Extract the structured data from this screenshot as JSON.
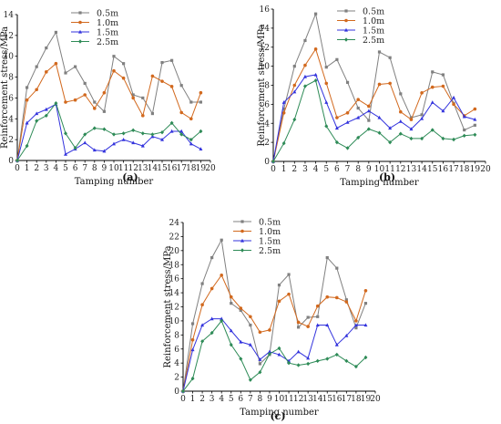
{
  "chart_data": [
    {
      "type": "line",
      "panel_label": "(a)",
      "xlabel": "Tamping number",
      "ylabel": "Reinforcement stress/MPa",
      "xlim": [
        0,
        20
      ],
      "ylim": [
        0,
        14
      ],
      "xticks": [
        0,
        1,
        2,
        3,
        4,
        5,
        6,
        7,
        8,
        9,
        10,
        11,
        12,
        13,
        14,
        15,
        16,
        17,
        18,
        19,
        20
      ],
      "yticks": [
        0,
        2,
        4,
        6,
        8,
        10,
        12,
        14
      ],
      "legend": "top-left",
      "series": [
        {
          "name": "0.5m",
          "color": "#808080",
          "marker": "square",
          "x": [
            0,
            1,
            2,
            3,
            4,
            5,
            6,
            7,
            8,
            9,
            10,
            11,
            12,
            13,
            14,
            15,
            16,
            17,
            18,
            19
          ],
          "y": [
            0,
            7,
            9,
            10.8,
            12.3,
            8.4,
            9.0,
            7.4,
            5.6,
            4.7,
            10.0,
            9.3,
            6.3,
            6.0,
            4.5,
            9.4,
            9.6,
            7.2,
            5.6,
            5.6
          ]
        },
        {
          "name": "1.0m",
          "color": "#d2691e",
          "marker": "circle",
          "x": [
            0,
            1,
            2,
            3,
            4,
            5,
            6,
            7,
            8,
            9,
            10,
            11,
            12,
            13,
            14,
            15,
            16,
            17,
            18,
            19
          ],
          "y": [
            0,
            5.8,
            6.8,
            8.5,
            9.3,
            5.6,
            5.8,
            6.3,
            5.0,
            6.5,
            8.6,
            7.9,
            6.0,
            4.3,
            8.1,
            7.6,
            7.1,
            4.6,
            4.0,
            6.5
          ]
        },
        {
          "name": "1.5m",
          "color": "#3333dd",
          "marker": "triangle",
          "x": [
            0,
            1,
            2,
            3,
            4,
            5,
            6,
            7,
            8,
            9,
            10,
            11,
            12,
            13,
            14,
            15,
            16,
            17,
            18,
            19
          ],
          "y": [
            0,
            3.6,
            4.5,
            4.9,
            5.4,
            0.6,
            1.1,
            1.7,
            1.0,
            0.9,
            1.6,
            2.0,
            1.7,
            1.4,
            2.3,
            2.0,
            2.8,
            2.8,
            1.6,
            1.1
          ]
        },
        {
          "name": "2.5m",
          "color": "#2e8b57",
          "marker": "diamond",
          "x": [
            0,
            1,
            2,
            3,
            4,
            5,
            6,
            7,
            8,
            9,
            10,
            11,
            12,
            13,
            14,
            15,
            16,
            17,
            18,
            19
          ],
          "y": [
            0,
            1.4,
            3.8,
            4.3,
            5.5,
            2.6,
            1.2,
            2.5,
            3.1,
            3.0,
            2.5,
            2.6,
            2.9,
            2.6,
            2.5,
            2.7,
            3.6,
            2.5,
            2.0,
            2.8
          ]
        }
      ]
    },
    {
      "type": "line",
      "panel_label": "(b)",
      "xlabel": "Tamping number",
      "ylabel": "Reinforcement stress/MPa",
      "xlim": [
        0,
        20
      ],
      "ylim": [
        0,
        16
      ],
      "xticks": [
        0,
        1,
        2,
        3,
        4,
        5,
        6,
        7,
        8,
        9,
        10,
        11,
        12,
        13,
        14,
        15,
        16,
        17,
        18,
        19,
        20
      ],
      "yticks": [
        0,
        2,
        4,
        6,
        8,
        10,
        12,
        14,
        16
      ],
      "legend": "top-center",
      "series": [
        {
          "name": "0.5m",
          "color": "#808080",
          "marker": "square",
          "x": [
            0,
            1,
            2,
            3,
            4,
            5,
            6,
            7,
            8,
            9,
            10,
            11,
            12,
            13,
            14,
            15,
            16,
            17,
            18,
            19
          ],
          "y": [
            0,
            5.5,
            10.0,
            12.7,
            15.5,
            9.9,
            10.7,
            8.3,
            5.6,
            4.3,
            11.5,
            10.9,
            7.1,
            4.6,
            4.9,
            9.4,
            9.1,
            6.1,
            3.3,
            3.8
          ]
        },
        {
          "name": "1.0m",
          "color": "#d2691e",
          "marker": "circle",
          "x": [
            0,
            1,
            2,
            3,
            4,
            5,
            6,
            7,
            8,
            9,
            10,
            11,
            12,
            13,
            14,
            15,
            16,
            17,
            18,
            19
          ],
          "y": [
            0,
            5.1,
            8.0,
            10.1,
            11.8,
            8.2,
            4.6,
            5.1,
            6.5,
            5.8,
            8.1,
            8.2,
            5.2,
            4.4,
            7.2,
            7.8,
            7.9,
            6.0,
            4.8,
            5.5
          ]
        },
        {
          "name": "1.5m",
          "color": "#3333dd",
          "marker": "triangle",
          "x": [
            0,
            1,
            2,
            3,
            4,
            5,
            6,
            7,
            8,
            9,
            10,
            11,
            12,
            13,
            14,
            15,
            16,
            17,
            18,
            19
          ],
          "y": [
            0,
            6.2,
            7.3,
            8.9,
            9.1,
            6.2,
            3.5,
            4.1,
            4.6,
            5.3,
            4.6,
            3.5,
            4.2,
            3.4,
            4.5,
            6.2,
            5.3,
            6.7,
            4.7,
            4.4
          ]
        },
        {
          "name": "2.5m",
          "color": "#2e8b57",
          "marker": "diamond",
          "x": [
            0,
            1,
            2,
            3,
            4,
            5,
            6,
            7,
            8,
            9,
            10,
            11,
            12,
            13,
            14,
            15,
            16,
            17,
            18,
            19
          ],
          "y": [
            0,
            1.9,
            4.4,
            7.9,
            8.5,
            3.7,
            2.0,
            1.4,
            2.5,
            3.4,
            3.0,
            2.0,
            2.9,
            2.4,
            2.4,
            3.3,
            2.4,
            2.3,
            2.7,
            2.8
          ]
        }
      ]
    },
    {
      "type": "line",
      "panel_label": "(c)",
      "xlabel": "Tamping number",
      "ylabel": "Reinforcement stress/MPa",
      "xlim": [
        0,
        20
      ],
      "ylim": [
        0,
        24
      ],
      "xticks": [
        0,
        1,
        2,
        3,
        4,
        5,
        6,
        7,
        8,
        9,
        10,
        11,
        12,
        13,
        14,
        15,
        16,
        17,
        18,
        19,
        20
      ],
      "yticks": [
        0,
        2,
        4,
        6,
        8,
        10,
        12,
        14,
        16,
        18,
        20,
        22,
        24
      ],
      "legend": "top-left",
      "series": [
        {
          "name": "0.5m",
          "color": "#808080",
          "marker": "square",
          "x": [
            0,
            1,
            2,
            3,
            4,
            5,
            6,
            7,
            8,
            9,
            10,
            11,
            12,
            13,
            14,
            15,
            16,
            17,
            18,
            19
          ],
          "y": [
            0,
            9.6,
            15.3,
            19.0,
            21.5,
            12.5,
            11.5,
            9.4,
            3.9,
            5.2,
            15.1,
            16.6,
            9.1,
            10.5,
            10.6,
            19.0,
            17.5,
            13.0,
            9.0,
            12.5
          ]
        },
        {
          "name": "1.0m",
          "color": "#d2691e",
          "marker": "circle",
          "x": [
            0,
            1,
            2,
            3,
            4,
            5,
            6,
            7,
            8,
            9,
            10,
            11,
            12,
            13,
            14,
            15,
            16,
            17,
            18,
            19
          ],
          "y": [
            0,
            7.3,
            12.3,
            14.6,
            16.5,
            13.4,
            11.8,
            10.6,
            8.4,
            8.7,
            12.8,
            13.8,
            9.8,
            9.2,
            12.1,
            13.4,
            13.3,
            12.7,
            10.0,
            14.3
          ]
        },
        {
          "name": "1.5m",
          "color": "#3333dd",
          "marker": "triangle",
          "x": [
            0,
            1,
            2,
            3,
            4,
            5,
            6,
            7,
            8,
            9,
            10,
            11,
            12,
            13,
            14,
            15,
            16,
            17,
            18,
            19
          ],
          "y": [
            0,
            5.9,
            9.4,
            10.3,
            10.3,
            8.6,
            7.0,
            6.6,
            4.5,
            5.6,
            5.2,
            4.3,
            5.6,
            4.7,
            9.4,
            9.4,
            6.6,
            7.9,
            9.4,
            9.4
          ]
        },
        {
          "name": "2.5m",
          "color": "#2e8b57",
          "marker": "diamond",
          "x": [
            0,
            1,
            2,
            3,
            4,
            5,
            6,
            7,
            8,
            9,
            10,
            11,
            12,
            13,
            14,
            15,
            16,
            17,
            18,
            19
          ],
          "y": [
            0,
            1.8,
            7.1,
            8.3,
            10.0,
            6.6,
            4.6,
            1.6,
            2.7,
            5.3,
            6.1,
            4.0,
            3.7,
            3.9,
            4.3,
            4.6,
            5.2,
            4.3,
            3.5,
            4.8
          ]
        }
      ]
    }
  ]
}
